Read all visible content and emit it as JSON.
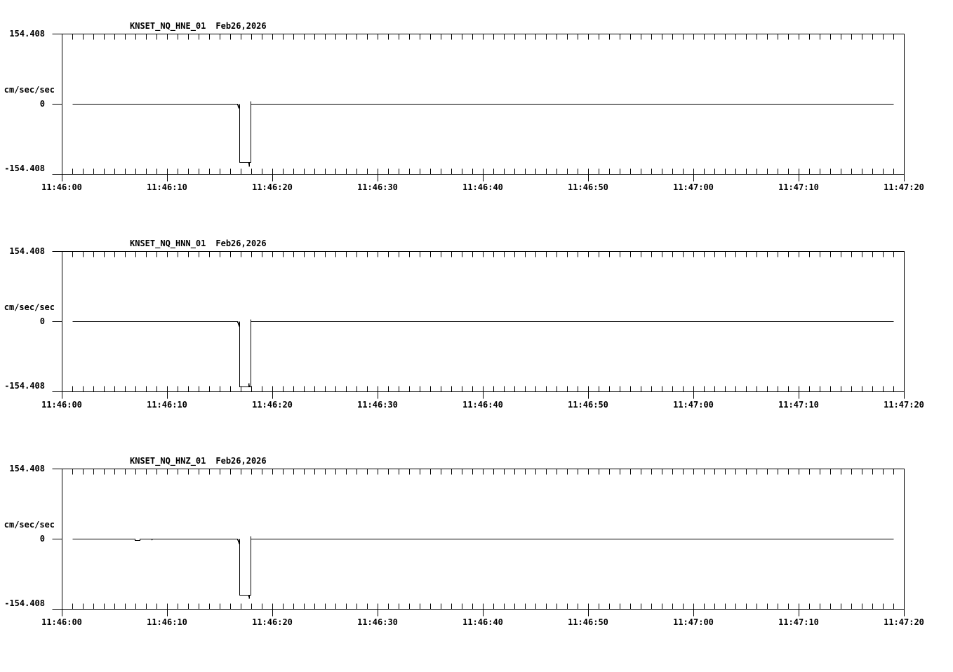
{
  "page": {
    "background": "#ffffff",
    "line_color": "#000000"
  },
  "chart_data": [
    {
      "type": "line",
      "title": "KNSET_NQ_HNE_01  Feb26,2026",
      "station_channel": "KNSET_NQ_HNE_01",
      "date": "Feb26,2026",
      "ylabel": "cm/sec/sec",
      "xlabel": "",
      "ylim": [
        -154.408,
        154.408
      ],
      "y_tick_labels": [
        "154.408",
        "0",
        "-154.408"
      ],
      "x_tick_labels": [
        "11:46:00",
        "11:46:10",
        "11:46:20",
        "11:46:30",
        "11:46:40",
        "11:46:50",
        "11:47:00",
        "11:47:10",
        "11:47:20"
      ],
      "x_range_seconds": [
        0,
        80
      ],
      "x_major_tick_s": 10,
      "x_minor_tick_s": 1,
      "grid": "off",
      "legend": "none",
      "series": [
        {
          "name": "KNSET_NQ_HNE_01",
          "units": "cm/sec/sec",
          "points": [
            [
              1,
              0
            ],
            [
              16.67,
              0
            ],
            [
              16.8,
              -9
            ],
            [
              16.87,
              0
            ],
            [
              16.87,
              -128
            ],
            [
              17.73,
              -128
            ],
            [
              17.77,
              -137
            ],
            [
              17.8,
              -128
            ],
            [
              17.9,
              -128
            ],
            [
              17.9,
              6
            ],
            [
              17.93,
              0
            ],
            [
              79,
              0
            ]
          ]
        }
      ]
    },
    {
      "type": "line",
      "title": "KNSET_NQ_HNN_01  Feb26,2026",
      "station_channel": "KNSET_NQ_HNN_01",
      "date": "Feb26,2026",
      "ylabel": "cm/sec/sec",
      "xlabel": "",
      "ylim": [
        -154.408,
        154.408
      ],
      "y_tick_labels": [
        "154.408",
        "0",
        "-154.408"
      ],
      "x_tick_labels": [
        "11:46:00",
        "11:46:10",
        "11:46:20",
        "11:46:30",
        "11:46:40",
        "11:46:50",
        "11:47:00",
        "11:47:10",
        "11:47:20"
      ],
      "x_range_seconds": [
        0,
        80
      ],
      "x_major_tick_s": 10,
      "x_minor_tick_s": 1,
      "grid": "off",
      "legend": "none",
      "series": [
        {
          "name": "KNSET_NQ_HNN_01",
          "units": "cm/sec/sec",
          "points": [
            [
              1,
              0
            ],
            [
              16.67,
              0
            ],
            [
              16.8,
              -8
            ],
            [
              16.87,
              0
            ],
            [
              16.87,
              -143
            ],
            [
              17.7,
              -143
            ],
            [
              17.73,
              -136
            ],
            [
              17.77,
              -143
            ],
            [
              17.9,
              -143
            ],
            [
              17.9,
              5
            ],
            [
              17.93,
              0
            ],
            [
              79,
              0
            ]
          ]
        }
      ]
    },
    {
      "type": "line",
      "title": "KNSET_NQ_HNZ_01  Feb26,2026",
      "station_channel": "KNSET_NQ_HNZ_01",
      "date": "Feb26,2026",
      "ylabel": "cm/sec/sec",
      "xlabel": "",
      "ylim": [
        -154.408,
        154.408
      ],
      "y_tick_labels": [
        "154.408",
        "0",
        "-154.408"
      ],
      "x_tick_labels": [
        "11:46:00",
        "11:46:10",
        "11:46:20",
        "11:46:30",
        "11:46:40",
        "11:46:50",
        "11:47:00",
        "11:47:10",
        "11:47:20"
      ],
      "x_range_seconds": [
        0,
        80
      ],
      "x_major_tick_s": 10,
      "x_minor_tick_s": 1,
      "grid": "off",
      "legend": "none",
      "series": [
        {
          "name": "KNSET_NQ_HNZ_01",
          "units": "cm/sec/sec",
          "points": [
            [
              1,
              0
            ],
            [
              6.9,
              0
            ],
            [
              6.9,
              -3
            ],
            [
              7.4,
              -3
            ],
            [
              7.4,
              0
            ],
            [
              8.5,
              0
            ],
            [
              8.5,
              -2
            ],
            [
              8.6,
              0
            ],
            [
              16.67,
              0
            ],
            [
              16.8,
              -8
            ],
            [
              16.87,
              0
            ],
            [
              16.87,
              -124
            ],
            [
              17.73,
              -124
            ],
            [
              17.77,
              -131
            ],
            [
              17.8,
              -124
            ],
            [
              17.9,
              -124
            ],
            [
              17.9,
              6
            ],
            [
              17.93,
              0
            ],
            [
              79,
              0
            ]
          ]
        }
      ]
    }
  ]
}
